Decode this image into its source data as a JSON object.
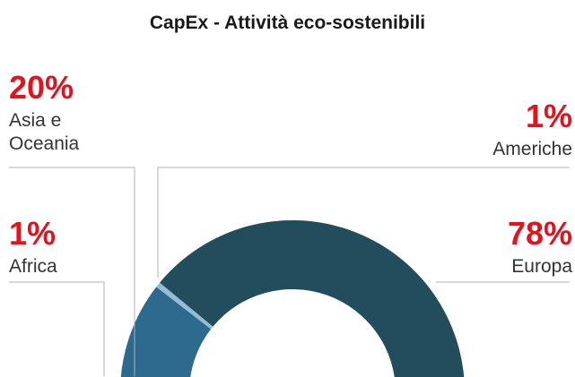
{
  "chart_data": {
    "type": "pie",
    "variant": "half-donut",
    "title": "CapEx - Attività eco-sostenibili",
    "slices": [
      {
        "label": "Africa",
        "pct_label": "1%",
        "value": 1,
        "color": "#6f9fc0"
      },
      {
        "label": "Asia e Oceania",
        "pct_label": "20%",
        "value": 20,
        "color": "#2e6a8e"
      },
      {
        "label": "Americhe",
        "pct_label": "1%",
        "value": 1,
        "color": "#93bcd6"
      },
      {
        "label": "Europa",
        "pct_label": "78%",
        "value": 78,
        "color": "#214d5c"
      }
    ]
  },
  "colors": {
    "accent": "#e0141e",
    "leader": "#b0b0b0"
  }
}
